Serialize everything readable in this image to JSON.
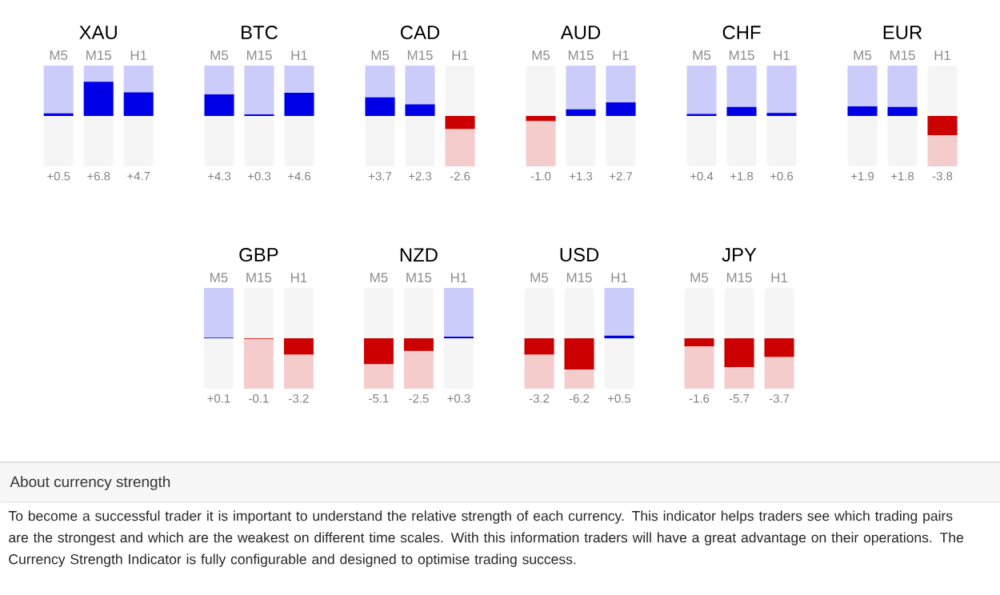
{
  "chart_data": [
    {
      "type": "bar",
      "title": "XAU",
      "categories": [
        "M5",
        "M15",
        "H1"
      ],
      "values": [
        0.5,
        6.8,
        4.7
      ],
      "colors": [
        "#0000e6",
        "#0000e6",
        "#0000e6"
      ],
      "value_labels": [
        "+0.5",
        "+6.8",
        "+4.7"
      ],
      "tick_labels": "x"
    },
    {
      "type": "bar",
      "title": "BTC",
      "categories": [
        "M5",
        "M15",
        "H1"
      ],
      "values": [
        4.3,
        0.3,
        4.6
      ],
      "colors": [
        "#0000e6",
        "#0000e6",
        "#0000e6"
      ],
      "value_labels": [
        "+4.3",
        "+0.3",
        "+4.6"
      ],
      "tick_labels": "x"
    },
    {
      "type": "bar",
      "title": "CAD",
      "categories": [
        "M5",
        "M15",
        "H1"
      ],
      "values": [
        3.7,
        2.3,
        -2.6
      ],
      "colors": [
        "#0000e6",
        "#0000e6",
        "#cc0000"
      ],
      "value_labels": [
        "+3.7",
        "+2.3",
        "-2.6"
      ],
      "tick_labels": "x"
    },
    {
      "type": "bar",
      "title": "AUD",
      "categories": [
        "M5",
        "M15",
        "H1"
      ],
      "values": [
        -1.0,
        1.3,
        2.7
      ],
      "colors": [
        "#cc0000",
        "#0000e6",
        "#0000e6"
      ],
      "value_labels": [
        "-1.0",
        "+1.3",
        "+2.7"
      ],
      "tick_labels": "x"
    },
    {
      "type": "bar",
      "title": "CHF",
      "categories": [
        "M5",
        "M15",
        "H1"
      ],
      "values": [
        0.4,
        1.8,
        0.6
      ],
      "colors": [
        "#0000e6",
        "#0000e6",
        "#0000e6"
      ],
      "value_labels": [
        "+0.4",
        "+1.8",
        "+0.6"
      ],
      "tick_labels": "x"
    },
    {
      "type": "bar",
      "title": "EUR",
      "categories": [
        "M5",
        "M15",
        "H1"
      ],
      "values": [
        1.9,
        1.8,
        -3.8
      ],
      "colors": [
        "#0000e6",
        "#0000e6",
        "#cc0000"
      ],
      "value_labels": [
        "+1.9",
        "+1.8",
        "-3.8"
      ],
      "tick_labels": "x"
    },
    {
      "type": "bar",
      "title": "GBP",
      "categories": [
        "M5",
        "M15",
        "H1"
      ],
      "values": [
        0.1,
        -0.1,
        -3.2
      ],
      "colors": [
        "#0000e6",
        "#cc0000",
        "#cc0000"
      ],
      "value_labels": [
        "+0.1",
        "-0.1",
        "-3.2"
      ],
      "tick_labels": "x"
    },
    {
      "type": "bar",
      "title": "NZD",
      "categories": [
        "M5",
        "M15",
        "H1"
      ],
      "values": [
        -5.1,
        -2.5,
        0.3
      ],
      "colors": [
        "#cc0000",
        "#cc0000",
        "#0000e6"
      ],
      "value_labels": [
        "-5.1",
        "-2.5",
        "+0.3"
      ],
      "tick_labels": "x"
    },
    {
      "type": "bar",
      "title": "USD",
      "categories": [
        "M5",
        "M15",
        "H1"
      ],
      "values": [
        -3.2,
        -6.2,
        0.5
      ],
      "colors": [
        "#cc0000",
        "#cc0000",
        "#0000e6"
      ],
      "value_labels": [
        "-3.2",
        "-6.2",
        "+0.5"
      ],
      "tick_labels": "x"
    },
    {
      "type": "bar",
      "title": "JPY",
      "categories": [
        "M5",
        "M15",
        "H1"
      ],
      "values": [
        -1.6,
        -5.7,
        -3.7
      ],
      "colors": [
        "#cc0000",
        "#cc0000",
        "#cc0000"
      ],
      "value_labels": [
        "-1.6",
        "-5.7",
        "-3.7"
      ],
      "tick_labels": "x"
    },
    {
      "type": "other",
      "title": "About currency strength",
      "annotations": [
        "To become a successful trader it is important to understand the relative strength of each currency. This indicator helps traders see which trading pairs are the strongest and which are the weakest on different time scales. With this information traders will have a great advantage on their operations. The Currency Strength Indicator is fully configurable and designed to optimise trading success."
      ]
    }
  ]
}
